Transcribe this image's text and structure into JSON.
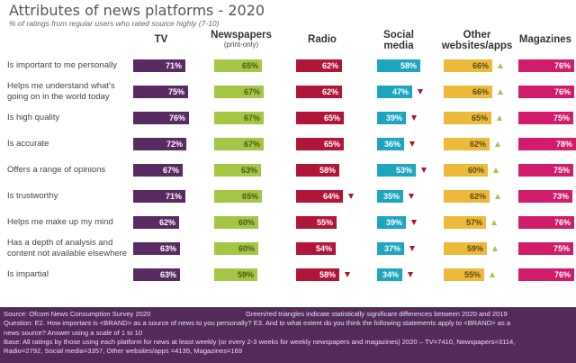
{
  "chart_data": {
    "type": "table",
    "title": "Attributes of news platforms - 2020",
    "subtitle": "% of ratings from regular users who rated source highly (7-10)",
    "columns": [
      {
        "key": "tv",
        "label": "TV",
        "sublabel": "",
        "color": "#5a2a62",
        "text_color": "#ffffff"
      },
      {
        "key": "newspapers",
        "label": "Newspapers",
        "sublabel": "(print-only)",
        "color": "#a5c545",
        "text_color": "#4a5a1a"
      },
      {
        "key": "radio",
        "label": "Radio",
        "sublabel": "",
        "color": "#b0163a",
        "text_color": "#ffffff"
      },
      {
        "key": "social",
        "label": "Social media",
        "sublabel": "",
        "color": "#1ea5bf",
        "text_color": "#ffffff"
      },
      {
        "key": "other",
        "label": "Other websites/apps",
        "sublabel": "",
        "color": "#ecb93a",
        "text_color": "#5a4a1a"
      },
      {
        "key": "magazines",
        "label": "Magazines",
        "sublabel": "",
        "color": "#d01c6a",
        "text_color": "#ffffff"
      }
    ],
    "rows": [
      {
        "label": "Is important to me personally",
        "values": [
          71,
          65,
          62,
          58,
          66,
          76
        ],
        "change": [
          "",
          "",
          "",
          "",
          "up",
          ""
        ]
      },
      {
        "label": "Helps me understand what's going on in the world today",
        "values": [
          75,
          67,
          62,
          47,
          66,
          76
        ],
        "change": [
          "",
          "",
          "",
          "down",
          "up",
          ""
        ]
      },
      {
        "label": "Is high quality",
        "values": [
          76,
          67,
          65,
          39,
          65,
          75
        ],
        "change": [
          "",
          "",
          "",
          "down",
          "up",
          ""
        ]
      },
      {
        "label": "Is accurate",
        "values": [
          72,
          67,
          65,
          36,
          62,
          78
        ],
        "change": [
          "",
          "",
          "",
          "down",
          "up",
          ""
        ]
      },
      {
        "label": "Offers a range of opinions",
        "values": [
          67,
          63,
          58,
          53,
          60,
          75
        ],
        "change": [
          "",
          "",
          "",
          "down",
          "up",
          ""
        ]
      },
      {
        "label": "Is trustworthy",
        "values": [
          71,
          65,
          64,
          35,
          62,
          73
        ],
        "change": [
          "",
          "",
          "down",
          "down",
          "up",
          ""
        ]
      },
      {
        "label": "Helps me make up my mind",
        "values": [
          62,
          60,
          55,
          39,
          57,
          76
        ],
        "change": [
          "",
          "",
          "",
          "down",
          "up",
          ""
        ]
      },
      {
        "label": "Has a depth of analysis and content not available elsewhere",
        "values": [
          63,
          60,
          54,
          37,
          59,
          75
        ],
        "change": [
          "",
          "",
          "",
          "down",
          "up",
          ""
        ]
      },
      {
        "label": "Is impartial",
        "values": [
          63,
          59,
          58,
          34,
          55,
          76
        ],
        "change": [
          "",
          "",
          "down",
          "down",
          "up",
          ""
        ]
      }
    ],
    "value_suffix": "%",
    "legend": {
      "up": "significant increase vs 2019",
      "down": "significant decrease vs 2019"
    }
  },
  "footer": {
    "source": "Source: Ofcom News Consumption Survey 2020",
    "note": "Green/red triangles indicate statistically significant differences between 2020 and 2019",
    "question_line1": "Question: E2. How important is <BRAND> as a source of news to you personally?  E3. And to what extent do you think the following statements apply to <BRAND> as a",
    "question_line2": "news source? Answer using a scale of 1 to 10",
    "base_line1": "Base: All ratings by those using each platform for news at least weekly (or every 2-3 weeks for weekly newspapers and magazines) 2020 – TV=7410, Newspapers=3114,",
    "base_line2": "Radio=2792, Social media=3357, Other websites/apps =4135, Magazines=169"
  }
}
